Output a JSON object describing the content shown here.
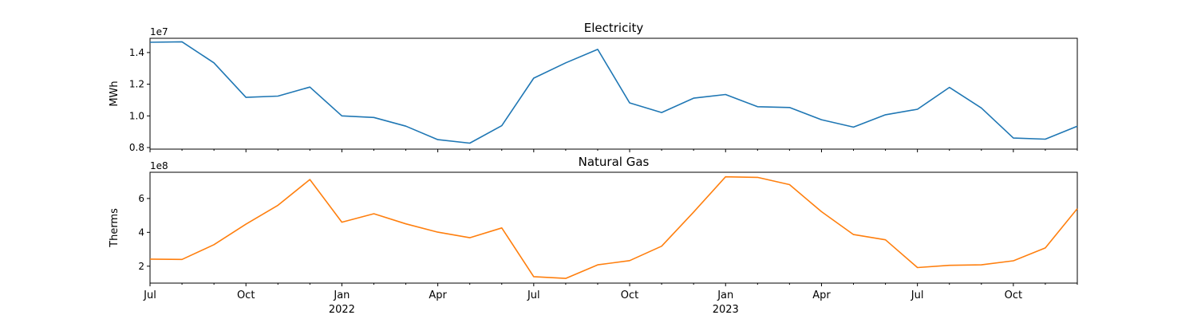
{
  "chart_data": [
    {
      "type": "line",
      "title": "Electricity",
      "ylabel": "MWh",
      "offset_label": "1e7",
      "ylim": [
        0.79,
        1.49
      ],
      "yticks": [
        0.8,
        1.0,
        1.2,
        1.4
      ],
      "ytick_labels": [
        "0.8",
        "1.0",
        "1.2",
        "1.4"
      ],
      "x": [
        "2021-07",
        "2021-08",
        "2021-09",
        "2021-10",
        "2021-11",
        "2021-12",
        "2022-01",
        "2022-02",
        "2022-03",
        "2022-04",
        "2022-05",
        "2022-06",
        "2022-07",
        "2022-08",
        "2022-09",
        "2022-10",
        "2022-11",
        "2022-12",
        "2023-01",
        "2023-02",
        "2023-03",
        "2023-04",
        "2023-05",
        "2023-06",
        "2023-07",
        "2023-08",
        "2023-09",
        "2023-10",
        "2023-11",
        "2023-12"
      ],
      "series": [
        {
          "color": "#1f77b4",
          "values": [
            1.465,
            1.468,
            1.335,
            1.117,
            1.125,
            1.182,
            1.0,
            0.99,
            0.935,
            0.85,
            0.828,
            0.938,
            1.238,
            1.335,
            1.42,
            1.082,
            1.021,
            1.112,
            1.135,
            1.058,
            1.053,
            0.976,
            0.929,
            1.007,
            1.042,
            1.18,
            1.05,
            0.86,
            0.853,
            0.935
          ]
        }
      ]
    },
    {
      "type": "line",
      "title": "Natural Gas",
      "ylabel": "Therms",
      "offset_label": "1e8",
      "ylim": [
        1.0,
        7.55
      ],
      "yticks": [
        2,
        4,
        6
      ],
      "ytick_labels": [
        "2",
        "4",
        "6"
      ],
      "x": [
        "2021-07",
        "2021-08",
        "2021-09",
        "2021-10",
        "2021-11",
        "2021-12",
        "2022-01",
        "2022-02",
        "2022-03",
        "2022-04",
        "2022-05",
        "2022-06",
        "2022-07",
        "2022-08",
        "2022-09",
        "2022-10",
        "2022-11",
        "2022-12",
        "2023-01",
        "2023-02",
        "2023-03",
        "2023-04",
        "2023-05",
        "2023-06",
        "2023-07",
        "2023-08",
        "2023-09",
        "2023-10",
        "2023-11",
        "2023-12"
      ],
      "series": [
        {
          "color": "#ff7f0e",
          "values": [
            2.42,
            2.4,
            3.27,
            4.48,
            5.6,
            7.12,
            4.6,
            5.1,
            4.5,
            4.01,
            3.68,
            4.26,
            1.38,
            1.28,
            2.08,
            2.33,
            3.18,
            5.2,
            7.28,
            7.25,
            6.82,
            5.22,
            3.87,
            3.56,
            1.92,
            2.05,
            2.08,
            2.32,
            3.08,
            5.4
          ]
        }
      ]
    }
  ],
  "x_axis": {
    "month_labels": [
      "Jul",
      "Oct",
      "Jan",
      "Apr",
      "Jul",
      "Oct",
      "Jan",
      "Apr",
      "Jul",
      "Oct"
    ],
    "year_labels": [
      "2022",
      "2023"
    ]
  }
}
